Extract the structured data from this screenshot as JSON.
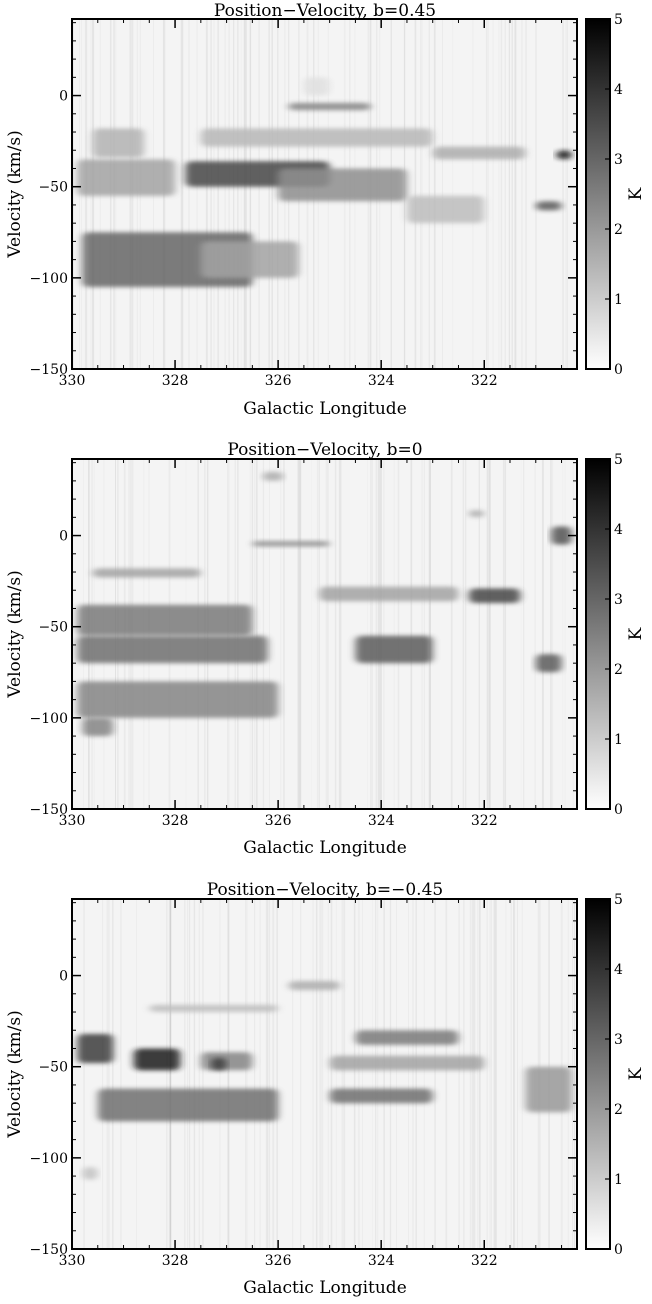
{
  "chart_data": [
    {
      "type": "heatmap",
      "title": "Position−Velocity, b=0.45",
      "xlabel": "Galactic Longitude",
      "ylabel": "Velocity (km/s)",
      "colorbar_label": "K",
      "xlim": [
        330,
        320.2
      ],
      "ylim": [
        -150,
        42
      ],
      "clim": [
        0,
        5
      ],
      "x_ticks": [
        "330",
        "328",
        "326",
        "324",
        "322"
      ],
      "y_ticks": [
        "0",
        "−50",
        "−100",
        "−150"
      ],
      "colorbar_ticks": [
        "0",
        "1",
        "2",
        "3",
        "4",
        "5"
      ],
      "colormap": "white-to-black",
      "emission_features": [
        {
          "l": [
            329.8,
            326.5
          ],
          "v": [
            -105,
            -75
          ],
          "K": 3.0
        },
        {
          "l": [
            327.5,
            325.6
          ],
          "v": [
            -100,
            -80
          ],
          "K": 1.8
        },
        {
          "l": [
            329.9,
            328.0
          ],
          "v": [
            -55,
            -35
          ],
          "K": 1.8
        },
        {
          "l": [
            327.8,
            325.0
          ],
          "v": [
            -50,
            -36
          ],
          "K": 3.6
        },
        {
          "l": [
            326.0,
            323.5
          ],
          "v": [
            -58,
            -40
          ],
          "K": 2.2
        },
        {
          "l": [
            329.6,
            328.6
          ],
          "v": [
            -34,
            -18
          ],
          "K": 1.5
        },
        {
          "l": [
            327.5,
            323.0
          ],
          "v": [
            -28,
            -18
          ],
          "K": 1.4
        },
        {
          "l": [
            325.8,
            324.2
          ],
          "v": [
            -8,
            -4
          ],
          "K": 2.4
        },
        {
          "l": [
            323.0,
            321.2
          ],
          "v": [
            -35,
            -28
          ],
          "K": 1.6
        },
        {
          "l": [
            320.6,
            320.3
          ],
          "v": [
            -35,
            -30
          ],
          "K": 4.5
        },
        {
          "l": [
            321.0,
            320.5
          ],
          "v": [
            -63,
            -58
          ],
          "K": 3.2
        },
        {
          "l": [
            323.5,
            322.0
          ],
          "v": [
            -70,
            -55
          ],
          "K": 1.3
        },
        {
          "l": [
            325.5,
            325.0
          ],
          "v": [
            0,
            10
          ],
          "K": 0.6
        }
      ]
    },
    {
      "type": "heatmap",
      "title": "Position−Velocity, b=0",
      "xlabel": "Galactic Longitude",
      "ylabel": "Velocity (km/s)",
      "colorbar_label": "K",
      "xlim": [
        330,
        320.2
      ],
      "ylim": [
        -150,
        42
      ],
      "clim": [
        0,
        5
      ],
      "x_ticks": [
        "330",
        "328",
        "326",
        "324",
        "322"
      ],
      "y_ticks": [
        "0",
        "−50",
        "−100",
        "−150"
      ],
      "colorbar_ticks": [
        "0",
        "1",
        "2",
        "3",
        "4",
        "5"
      ],
      "colormap": "white-to-black",
      "emission_features": [
        {
          "l": [
            329.9,
            326.0
          ],
          "v": [
            -100,
            -80
          ],
          "K": 2.4
        },
        {
          "l": [
            329.9,
            326.2
          ],
          "v": [
            -70,
            -55
          ],
          "K": 2.8
        },
        {
          "l": [
            329.9,
            326.5
          ],
          "v": [
            -55,
            -38
          ],
          "K": 2.6
        },
        {
          "l": [
            329.8,
            329.2
          ],
          "v": [
            -110,
            -100
          ],
          "K": 2.4
        },
        {
          "l": [
            324.5,
            323.0
          ],
          "v": [
            -70,
            -55
          ],
          "K": 3.2
        },
        {
          "l": [
            325.2,
            322.5
          ],
          "v": [
            -36,
            -28
          ],
          "K": 1.8
        },
        {
          "l": [
            322.3,
            321.3
          ],
          "v": [
            -37,
            -29
          ],
          "K": 3.6
        },
        {
          "l": [
            321.0,
            320.5
          ],
          "v": [
            -75,
            -65
          ],
          "K": 3.2
        },
        {
          "l": [
            320.7,
            320.3
          ],
          "v": [
            -5,
            5
          ],
          "K": 3.4
        },
        {
          "l": [
            329.6,
            327.5
          ],
          "v": [
            -23,
            -18
          ],
          "K": 1.8
        },
        {
          "l": [
            326.5,
            325.0
          ],
          "v": [
            -6,
            -3
          ],
          "K": 2.2
        },
        {
          "l": [
            326.3,
            325.9
          ],
          "v": [
            30,
            35
          ],
          "K": 1.6
        },
        {
          "l": [
            322.3,
            322.0
          ],
          "v": [
            10,
            14
          ],
          "K": 1.6
        }
      ]
    },
    {
      "type": "heatmap",
      "title": "Position−Velocity, b=−0.45",
      "xlabel": "Galactic Longitude",
      "ylabel": "Velocity (km/s)",
      "colorbar_label": "K",
      "xlim": [
        330,
        320.2
      ],
      "ylim": [
        -150,
        42
      ],
      "clim": [
        0,
        5
      ],
      "x_ticks": [
        "330",
        "328",
        "326",
        "324",
        "322"
      ],
      "y_ticks": [
        "0",
        "−50",
        "−100",
        "−150"
      ],
      "colorbar_ticks": [
        "0",
        "1",
        "2",
        "3",
        "4",
        "5"
      ],
      "colormap": "white-to-black",
      "emission_features": [
        {
          "l": [
            329.5,
            326.0
          ],
          "v": [
            -80,
            -62
          ],
          "K": 2.8
        },
        {
          "l": [
            328.8,
            327.9
          ],
          "v": [
            -52,
            -40
          ],
          "K": 4.4
        },
        {
          "l": [
            327.5,
            326.5
          ],
          "v": [
            -52,
            -42
          ],
          "K": 2.4
        },
        {
          "l": [
            329.9,
            329.2
          ],
          "v": [
            -48,
            -32
          ],
          "K": 3.8
        },
        {
          "l": [
            327.3,
            327.0
          ],
          "v": [
            -52,
            -45
          ],
          "K": 3.8
        },
        {
          "l": [
            325.0,
            323.0
          ],
          "v": [
            -70,
            -62
          ],
          "K": 2.8
        },
        {
          "l": [
            324.5,
            322.5
          ],
          "v": [
            -38,
            -30
          ],
          "K": 2.6
        },
        {
          "l": [
            325.0,
            322.0
          ],
          "v": [
            -52,
            -44
          ],
          "K": 1.8
        },
        {
          "l": [
            321.2,
            320.3
          ],
          "v": [
            -75,
            -50
          ],
          "K": 2.0
        },
        {
          "l": [
            328.5,
            326.0
          ],
          "v": [
            -20,
            -16
          ],
          "K": 1.3
        },
        {
          "l": [
            325.8,
            324.8
          ],
          "v": [
            -8,
            -3
          ],
          "K": 1.6
        },
        {
          "l": [
            329.8,
            329.5
          ],
          "v": [
            -112,
            -105
          ],
          "K": 1.2
        }
      ]
    }
  ]
}
